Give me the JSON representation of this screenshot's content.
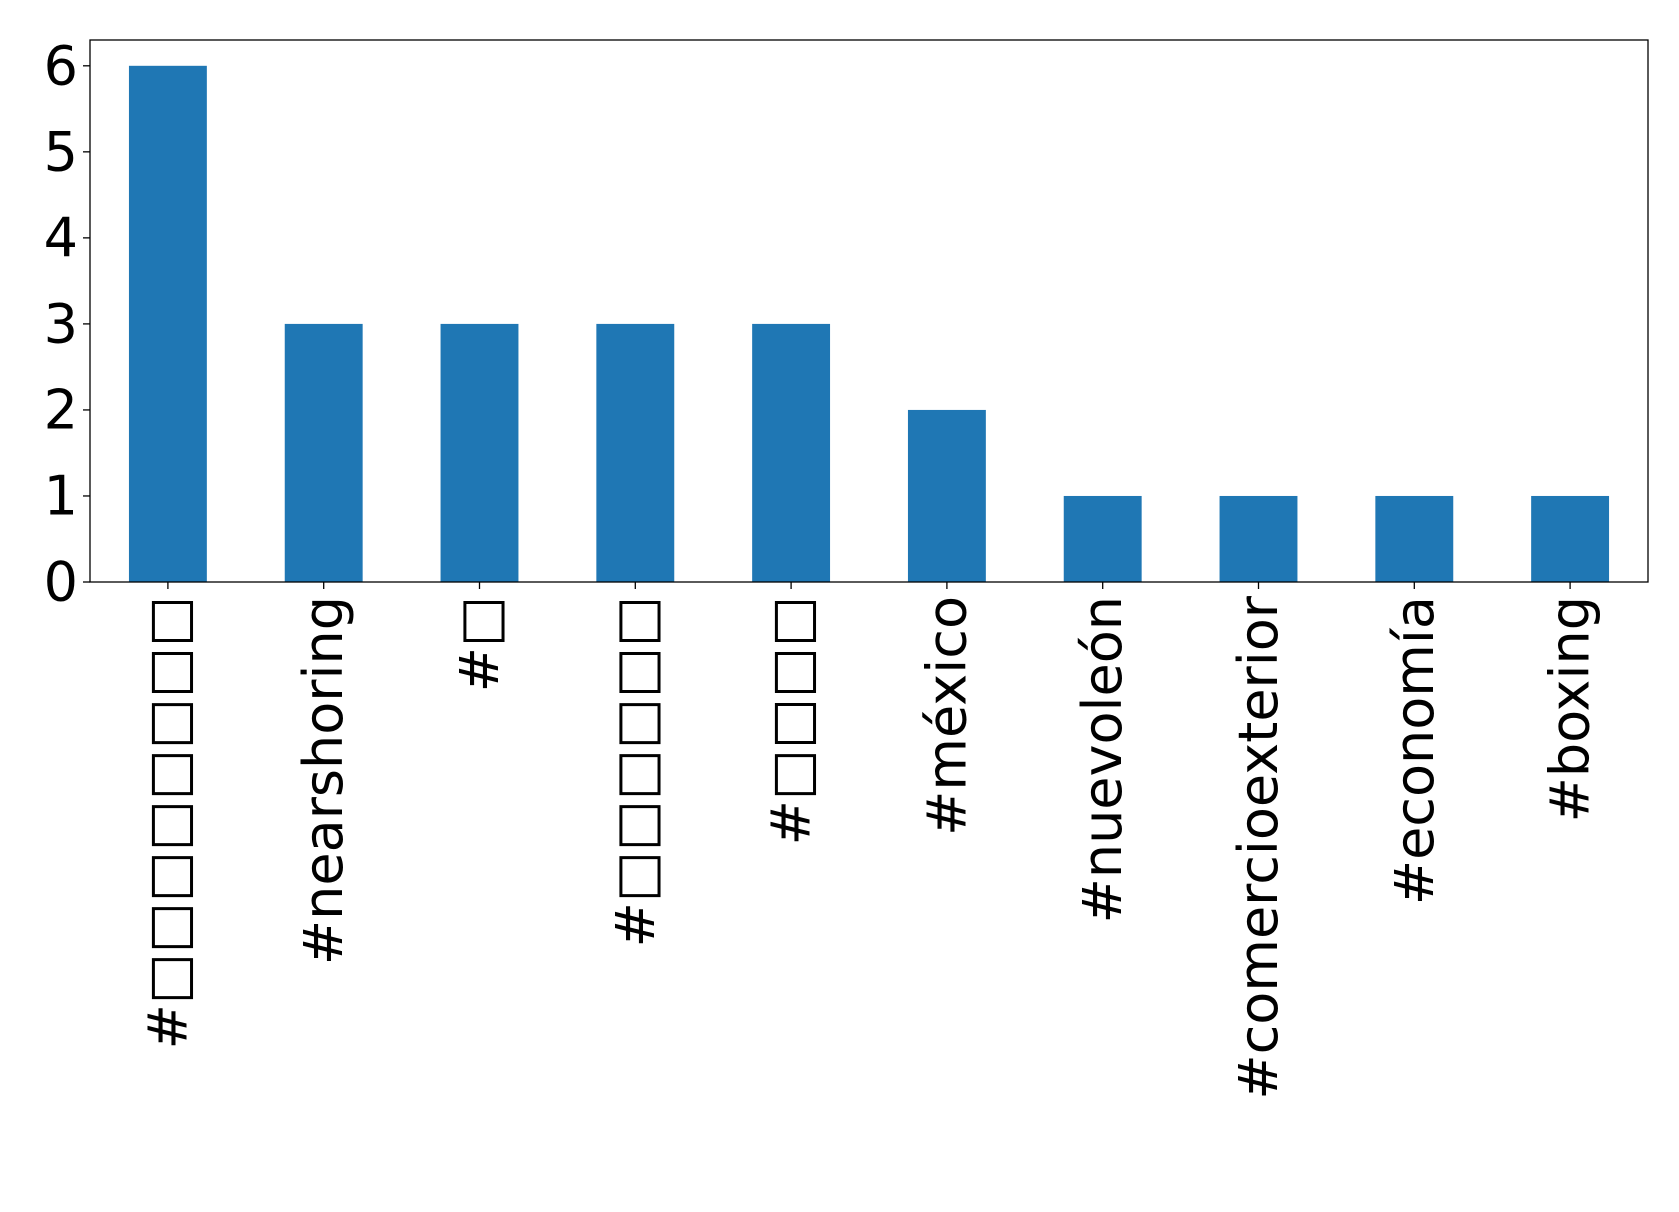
{
  "chart_data": {
    "type": "bar",
    "categories": [
      "#□□□□□□□□",
      "#nearshoring",
      "#□",
      "#□□□□□□",
      "#□□□□",
      "#méxico",
      "#nuevoleón",
      "#comercioexterior",
      "#economía",
      "#boxing"
    ],
    "values": [
      6,
      3,
      3,
      3,
      3,
      2,
      1,
      1,
      1,
      1
    ],
    "title": "",
    "xlabel": "",
    "ylabel": "",
    "ylim": [
      0,
      6.3
    ],
    "yticks": [
      "0",
      "1",
      "2",
      "3",
      "4",
      "5",
      "6"
    ],
    "grid": false,
    "colors": {
      "bar": "#1f77b4",
      "axis": "#000000"
    }
  }
}
